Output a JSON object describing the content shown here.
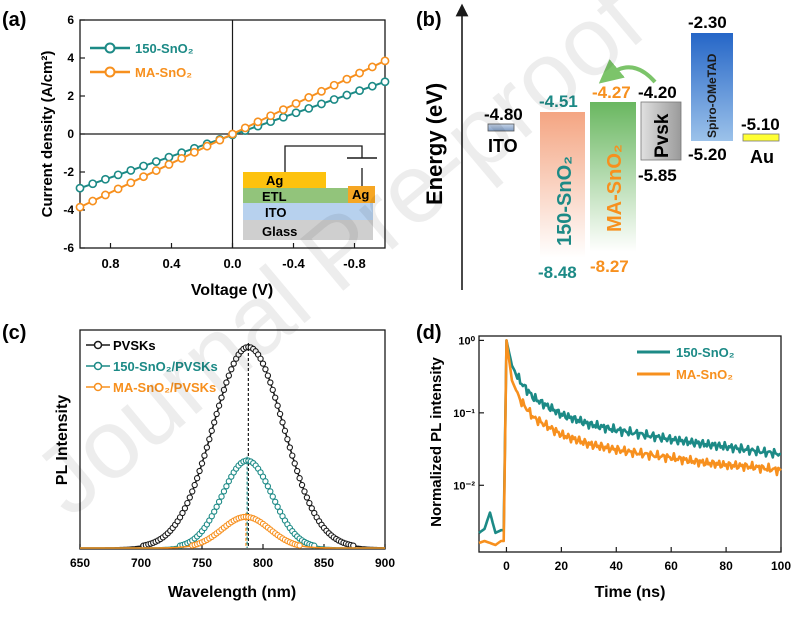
{
  "watermark": "Journal Pre-proof",
  "colors": {
    "teal": "#1c8a86",
    "orange": "#f7901e",
    "black": "#1a1a1a"
  },
  "chart_data": [
    {
      "panel": "(a)",
      "type": "line",
      "xlabel": "Voltage (V)",
      "ylabel": "Current density (A/cm²)",
      "xlim": [
        1.0,
        -1.0
      ],
      "ylim": [
        -6,
        6
      ],
      "x_ticks": [
        "0.8",
        "0.4",
        "0.0",
        "-0.4",
        "-0.8"
      ],
      "x_tick_values": [
        0.8,
        0.4,
        0.0,
        -0.4,
        -0.8
      ],
      "y_ticks": [
        "-6",
        "-4",
        "-2",
        "0",
        "2",
        "4",
        "6"
      ],
      "y_tick_values": [
        -6,
        -4,
        -2,
        0,
        2,
        4,
        6
      ],
      "series": [
        {
          "name": "150-SnO₂",
          "color": "#1c8a86",
          "x": [
            1.0,
            -1.0
          ],
          "y": [
            -2.85,
            2.75
          ]
        },
        {
          "name": "MA-SnO₂",
          "color": "#f7901e",
          "x": [
            1.0,
            -1.0
          ],
          "y": [
            -3.85,
            3.85
          ]
        }
      ],
      "inset_labels": {
        "ag_top": "Ag",
        "etl": "ETL",
        "ito": "ITO",
        "glass": "Glass",
        "ag_right": "Ag"
      }
    },
    {
      "panel": "(b)",
      "type": "energy-level diagram",
      "ylabel": "Energy (eV)",
      "levels": [
        {
          "name": "ITO",
          "top": "-4.80",
          "bottom": ""
        },
        {
          "name": "150-SnO₂",
          "top": "-4.51",
          "bottom": "-8.48"
        },
        {
          "name": "MA-SnO₂",
          "top": "-4.27",
          "bottom": "-8.27"
        },
        {
          "name": "Pvsk",
          "top": "-4.20",
          "bottom": "-5.85"
        },
        {
          "name": "Spiro-OMeTAD",
          "top": "-2.30",
          "bottom": "-5.20"
        },
        {
          "name": "Au",
          "top": "-5.10",
          "bottom": ""
        }
      ]
    },
    {
      "panel": "(c)",
      "type": "line",
      "xlabel": "Wavelength (nm)",
      "ylabel": "PL Intensity",
      "xlim": [
        650,
        900
      ],
      "x_ticks": [
        "650",
        "700",
        "750",
        "800",
        "850",
        "900"
      ],
      "x_tick_values": [
        650,
        700,
        750,
        800,
        850,
        900
      ],
      "series": [
        {
          "name": "PVSKs",
          "color": "#1a1a1a",
          "peak_nm": 788,
          "peak_rel": 1.0,
          "fwhm_nm": 68
        },
        {
          "name": "150-SnO₂/PVSKs",
          "color": "#1c8a86",
          "peak_nm": 787,
          "peak_rel": 0.435,
          "fwhm_nm": 48
        },
        {
          "name": "MA-SnO₂/PVSKs",
          "color": "#f7901e",
          "peak_nm": 786,
          "peak_rel": 0.155,
          "fwhm_nm": 46
        }
      ]
    },
    {
      "panel": "(d)",
      "type": "line",
      "xlabel": "Time (ns)",
      "ylabel": "Normalized PL intensity",
      "xlim": [
        -10,
        100
      ],
      "x_ticks": [
        "0",
        "20",
        "40",
        "60",
        "80",
        "100"
      ],
      "x_tick_values": [
        0,
        20,
        40,
        60,
        80,
        100
      ],
      "y_scale": "log",
      "y_ticks": [
        "10⁻²",
        "10⁻¹",
        "10⁰"
      ],
      "y_tick_values": [
        0.01,
        0.1,
        1
      ],
      "series": [
        {
          "name": "150-SnO₂",
          "color": "#1c8a86",
          "x": [
            -10,
            -8,
            -6,
            -4,
            -2,
            -1,
            0,
            2,
            5,
            10,
            20,
            30,
            40,
            50,
            60,
            70,
            80,
            90,
            100
          ],
          "y": [
            0.0022,
            0.0025,
            0.0042,
            0.0022,
            0.0024,
            0.0024,
            1.0,
            0.45,
            0.27,
            0.16,
            0.095,
            0.07,
            0.058,
            0.05,
            0.043,
            0.038,
            0.034,
            0.03,
            0.027
          ]
        },
        {
          "name": "MA-SnO₂",
          "color": "#f7901e",
          "x": [
            -10,
            -8,
            -6,
            -4,
            -2,
            -1,
            0,
            2,
            5,
            10,
            20,
            30,
            40,
            50,
            60,
            70,
            80,
            90,
            100
          ],
          "y": [
            0.0016,
            0.0017,
            0.0016,
            0.0015,
            0.0017,
            0.0017,
            1.0,
            0.28,
            0.15,
            0.085,
            0.05,
            0.037,
            0.031,
            0.027,
            0.024,
            0.021,
            0.019,
            0.018,
            0.016
          ]
        }
      ]
    }
  ],
  "panels": {
    "a": {
      "label": "(a)"
    },
    "b": {
      "label": "(b)"
    },
    "c": {
      "label": "(c)"
    },
    "d": {
      "label": "(d)"
    }
  }
}
